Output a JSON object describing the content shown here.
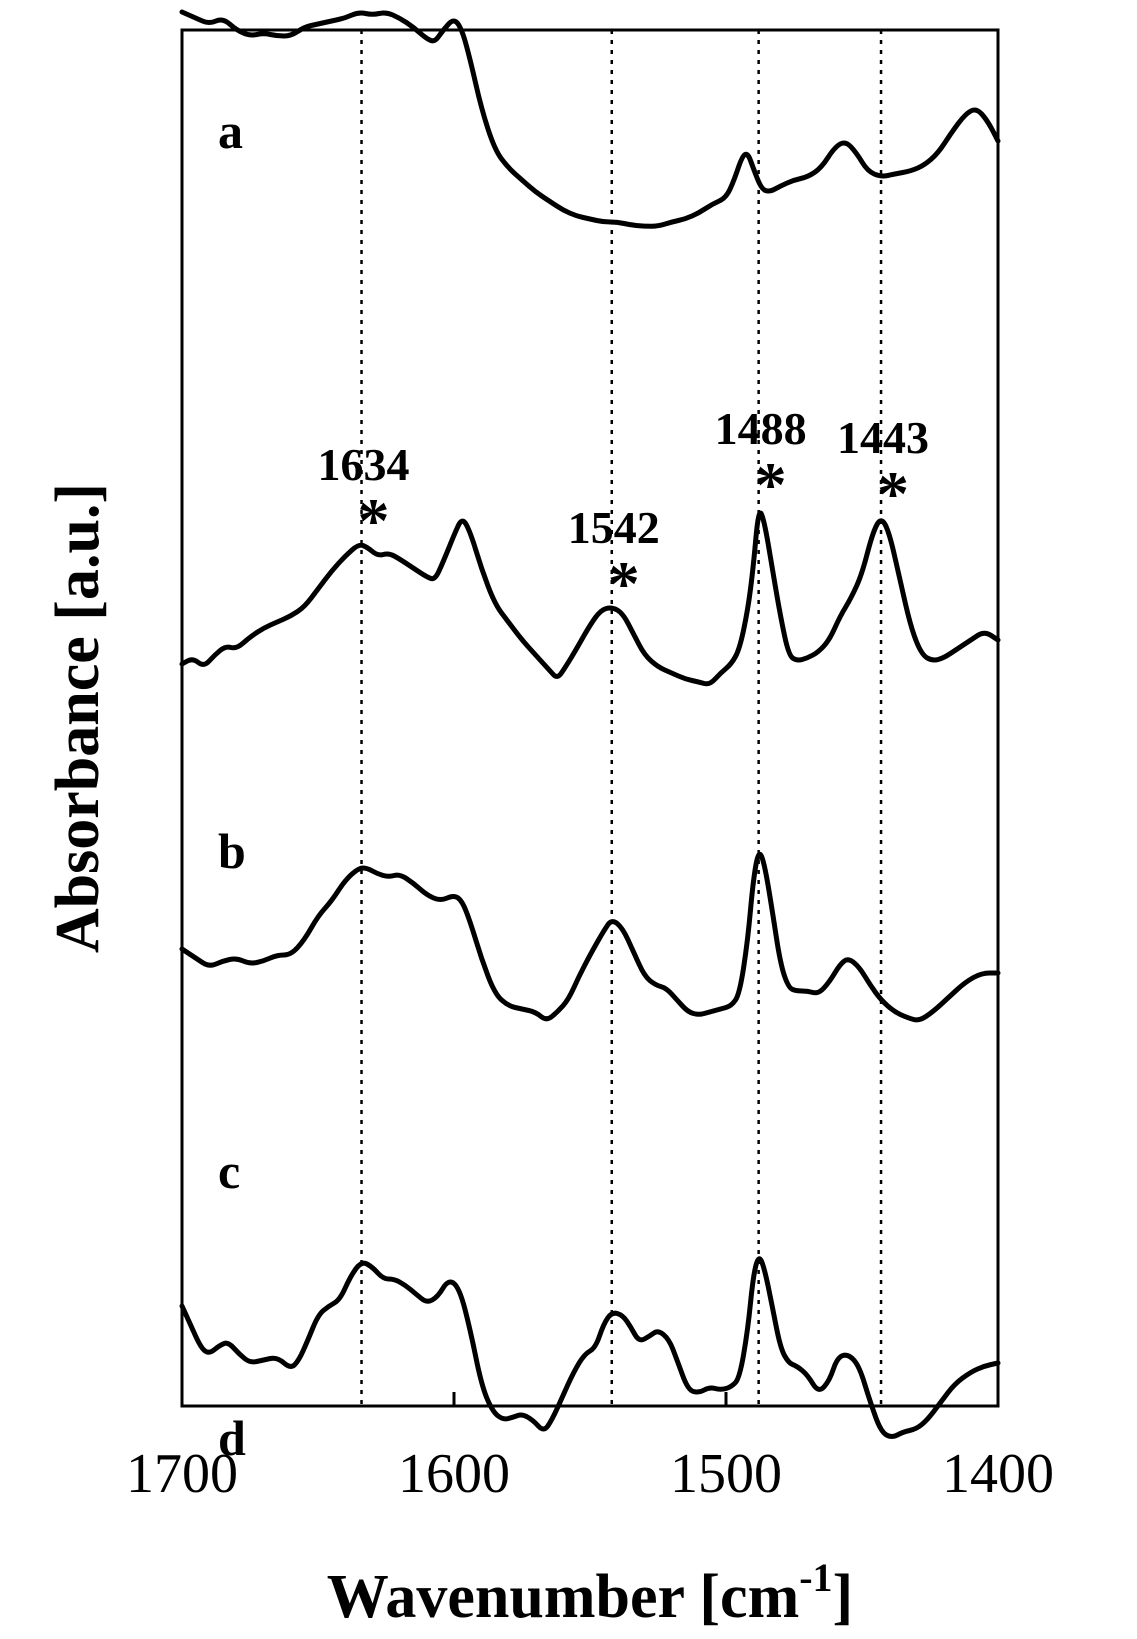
{
  "chart_data": {
    "type": "line",
    "xlabel_main": "Wavenumber [cm",
    "xlabel_sup": "-1",
    "xlabel_end": "]",
    "ylabel": "Absorbance [a.u.]",
    "xlim": [
      1700,
      1400
    ],
    "x_ticks": [
      "1700",
      "1600",
      "1500",
      "1400"
    ],
    "y_ticks_shown": false,
    "reference_lines_x": [
      1634,
      1542,
      1488,
      1443
    ],
    "peak_labels": [
      {
        "text": "1634",
        "x": 1634,
        "series": "b"
      },
      {
        "text": "1542",
        "x": 1542,
        "series": "b"
      },
      {
        "text": "1488",
        "x": 1488,
        "series": "b"
      },
      {
        "text": "1443",
        "x": 1443,
        "series": "b"
      }
    ],
    "peak_marker": "*",
    "series": [
      {
        "name": "a",
        "points": [
          [
            1700,
            0.88
          ],
          [
            1695,
            0.87
          ],
          [
            1690,
            0.86
          ],
          [
            1685,
            0.87
          ],
          [
            1680,
            0.85
          ],
          [
            1675,
            0.84
          ],
          [
            1670,
            0.845
          ],
          [
            1665,
            0.84
          ],
          [
            1660,
            0.84
          ],
          [
            1655,
            0.855
          ],
          [
            1650,
            0.86
          ],
          [
            1645,
            0.865
          ],
          [
            1640,
            0.87
          ],
          [
            1635,
            0.88
          ],
          [
            1630,
            0.875
          ],
          [
            1625,
            0.88
          ],
          [
            1620,
            0.87
          ],
          [
            1615,
            0.855
          ],
          [
            1610,
            0.835
          ],
          [
            1607,
            0.83
          ],
          [
            1604,
            0.85
          ],
          [
            1600,
            0.87
          ],
          [
            1597,
            0.85
          ],
          [
            1594,
            0.8
          ],
          [
            1590,
            0.72
          ],
          [
            1585,
            0.65
          ],
          [
            1580,
            0.62
          ],
          [
            1575,
            0.6
          ],
          [
            1570,
            0.58
          ],
          [
            1565,
            0.565
          ],
          [
            1560,
            0.55
          ],
          [
            1555,
            0.54
          ],
          [
            1550,
            0.535
          ],
          [
            1545,
            0.53
          ],
          [
            1540,
            0.53
          ],
          [
            1535,
            0.525
          ],
          [
            1530,
            0.523
          ],
          [
            1525,
            0.523
          ],
          [
            1520,
            0.53
          ],
          [
            1515,
            0.535
          ],
          [
            1510,
            0.545
          ],
          [
            1505,
            0.56
          ],
          [
            1500,
            0.57
          ],
          [
            1497,
            0.6
          ],
          [
            1494,
            0.64
          ],
          [
            1492,
            0.645
          ],
          [
            1490,
            0.62
          ],
          [
            1487,
            0.585
          ],
          [
            1484,
            0.58
          ],
          [
            1480,
            0.59
          ],
          [
            1475,
            0.6
          ],
          [
            1470,
            0.605
          ],
          [
            1465,
            0.62
          ],
          [
            1460,
            0.655
          ],
          [
            1456,
            0.665
          ],
          [
            1452,
            0.645
          ],
          [
            1448,
            0.615
          ],
          [
            1443,
            0.605
          ],
          [
            1438,
            0.61
          ],
          [
            1432,
            0.615
          ],
          [
            1427,
            0.625
          ],
          [
            1422,
            0.645
          ],
          [
            1417,
            0.68
          ],
          [
            1412,
            0.71
          ],
          [
            1408,
            0.72
          ],
          [
            1404,
            0.7
          ],
          [
            1400,
            0.665
          ]
        ]
      },
      {
        "name": "b",
        "points": [
          [
            1700,
            0.56
          ],
          [
            1696,
            0.57
          ],
          [
            1692,
            0.555
          ],
          [
            1688,
            0.575
          ],
          [
            1684,
            0.59
          ],
          [
            1680,
            0.585
          ],
          [
            1675,
            0.605
          ],
          [
            1670,
            0.62
          ],
          [
            1665,
            0.63
          ],
          [
            1660,
            0.64
          ],
          [
            1655,
            0.655
          ],
          [
            1650,
            0.685
          ],
          [
            1645,
            0.715
          ],
          [
            1640,
            0.74
          ],
          [
            1635,
            0.76
          ],
          [
            1632,
            0.755
          ],
          [
            1628,
            0.74
          ],
          [
            1624,
            0.745
          ],
          [
            1620,
            0.735
          ],
          [
            1615,
            0.72
          ],
          [
            1610,
            0.705
          ],
          [
            1607,
            0.7
          ],
          [
            1604,
            0.73
          ],
          [
            1600,
            0.775
          ],
          [
            1597,
            0.805
          ],
          [
            1594,
            0.78
          ],
          [
            1590,
            0.72
          ],
          [
            1585,
            0.66
          ],
          [
            1580,
            0.63
          ],
          [
            1575,
            0.6
          ],
          [
            1570,
            0.575
          ],
          [
            1565,
            0.55
          ],
          [
            1562,
            0.535
          ],
          [
            1559,
            0.555
          ],
          [
            1555,
            0.585
          ],
          [
            1550,
            0.625
          ],
          [
            1546,
            0.65
          ],
          [
            1542,
            0.655
          ],
          [
            1538,
            0.645
          ],
          [
            1534,
            0.61
          ],
          [
            1530,
            0.575
          ],
          [
            1525,
            0.555
          ],
          [
            1520,
            0.545
          ],
          [
            1515,
            0.535
          ],
          [
            1510,
            0.53
          ],
          [
            1506,
            0.525
          ],
          [
            1502,
            0.545
          ],
          [
            1498,
            0.56
          ],
          [
            1495,
            0.585
          ],
          [
            1492,
            0.65
          ],
          [
            1490,
            0.72
          ],
          [
            1488,
            0.82
          ],
          [
            1486,
            0.8
          ],
          [
            1483,
            0.72
          ],
          [
            1480,
            0.64
          ],
          [
            1477,
            0.575
          ],
          [
            1474,
            0.565
          ],
          [
            1470,
            0.57
          ],
          [
            1466,
            0.58
          ],
          [
            1462,
            0.6
          ],
          [
            1458,
            0.64
          ],
          [
            1454,
            0.67
          ],
          [
            1450,
            0.71
          ],
          [
            1446,
            0.78
          ],
          [
            1443,
            0.805
          ],
          [
            1440,
            0.78
          ],
          [
            1436,
            0.7
          ],
          [
            1432,
            0.62
          ],
          [
            1428,
            0.575
          ],
          [
            1424,
            0.565
          ],
          [
            1420,
            0.57
          ],
          [
            1415,
            0.585
          ],
          [
            1410,
            0.6
          ],
          [
            1405,
            0.615
          ],
          [
            1400,
            0.6
          ]
        ]
      },
      {
        "name": "c",
        "points": [
          [
            1700,
            0.585
          ],
          [
            1695,
            0.57
          ],
          [
            1690,
            0.555
          ],
          [
            1685,
            0.565
          ],
          [
            1680,
            0.57
          ],
          [
            1675,
            0.56
          ],
          [
            1670,
            0.565
          ],
          [
            1665,
            0.575
          ],
          [
            1660,
            0.575
          ],
          [
            1655,
            0.6
          ],
          [
            1650,
            0.64
          ],
          [
            1645,
            0.665
          ],
          [
            1640,
            0.7
          ],
          [
            1635,
            0.72
          ],
          [
            1632,
            0.72
          ],
          [
            1628,
            0.71
          ],
          [
            1624,
            0.705
          ],
          [
            1620,
            0.71
          ],
          [
            1615,
            0.695
          ],
          [
            1610,
            0.675
          ],
          [
            1605,
            0.665
          ],
          [
            1600,
            0.675
          ],
          [
            1597,
            0.665
          ],
          [
            1594,
            0.63
          ],
          [
            1590,
            0.57
          ],
          [
            1585,
            0.51
          ],
          [
            1580,
            0.49
          ],
          [
            1575,
            0.485
          ],
          [
            1570,
            0.48
          ],
          [
            1566,
            0.465
          ],
          [
            1562,
            0.48
          ],
          [
            1558,
            0.5
          ],
          [
            1554,
            0.54
          ],
          [
            1550,
            0.575
          ],
          [
            1545,
            0.615
          ],
          [
            1542,
            0.635
          ],
          [
            1538,
            0.62
          ],
          [
            1534,
            0.58
          ],
          [
            1530,
            0.54
          ],
          [
            1526,
            0.525
          ],
          [
            1522,
            0.52
          ],
          [
            1518,
            0.5
          ],
          [
            1514,
            0.48
          ],
          [
            1510,
            0.475
          ],
          [
            1506,
            0.48
          ],
          [
            1502,
            0.485
          ],
          [
            1498,
            0.49
          ],
          [
            1495,
            0.51
          ],
          [
            1492,
            0.6
          ],
          [
            1490,
            0.7
          ],
          [
            1488,
            0.75
          ],
          [
            1486,
            0.73
          ],
          [
            1483,
            0.65
          ],
          [
            1480,
            0.56
          ],
          [
            1477,
            0.52
          ],
          [
            1474,
            0.515
          ],
          [
            1470,
            0.515
          ],
          [
            1466,
            0.51
          ],
          [
            1462,
            0.53
          ],
          [
            1458,
            0.56
          ],
          [
            1455,
            0.57
          ],
          [
            1451,
            0.555
          ],
          [
            1447,
            0.525
          ],
          [
            1443,
            0.5
          ],
          [
            1438,
            0.48
          ],
          [
            1433,
            0.47
          ],
          [
            1429,
            0.465
          ],
          [
            1424,
            0.48
          ],
          [
            1418,
            0.505
          ],
          [
            1412,
            0.53
          ],
          [
            1406,
            0.545
          ],
          [
            1400,
            0.545
          ]
        ]
      },
      {
        "name": "d",
        "points": [
          [
            1700,
            0.49
          ],
          [
            1697,
            0.46
          ],
          [
            1693,
            0.42
          ],
          [
            1690,
            0.41
          ],
          [
            1686,
            0.425
          ],
          [
            1683,
            0.43
          ],
          [
            1679,
            0.41
          ],
          [
            1675,
            0.395
          ],
          [
            1670,
            0.4
          ],
          [
            1665,
            0.405
          ],
          [
            1660,
            0.385
          ],
          [
            1657,
            0.4
          ],
          [
            1654,
            0.43
          ],
          [
            1650,
            0.475
          ],
          [
            1646,
            0.49
          ],
          [
            1642,
            0.5
          ],
          [
            1638,
            0.54
          ],
          [
            1634,
            0.565
          ],
          [
            1630,
            0.555
          ],
          [
            1626,
            0.535
          ],
          [
            1622,
            0.535
          ],
          [
            1618,
            0.525
          ],
          [
            1614,
            0.51
          ],
          [
            1610,
            0.495
          ],
          [
            1606,
            0.505
          ],
          [
            1602,
            0.535
          ],
          [
            1598,
            0.52
          ],
          [
            1594,
            0.45
          ],
          [
            1590,
            0.36
          ],
          [
            1586,
            0.315
          ],
          [
            1582,
            0.3
          ],
          [
            1578,
            0.305
          ],
          [
            1575,
            0.31
          ],
          [
            1571,
            0.3
          ],
          [
            1567,
            0.28
          ],
          [
            1564,
            0.3
          ],
          [
            1560,
            0.34
          ],
          [
            1556,
            0.38
          ],
          [
            1552,
            0.41
          ],
          [
            1548,
            0.42
          ],
          [
            1545,
            0.46
          ],
          [
            1542,
            0.48
          ],
          [
            1538,
            0.475
          ],
          [
            1535,
            0.455
          ],
          [
            1532,
            0.43
          ],
          [
            1528,
            0.44
          ],
          [
            1525,
            0.45
          ],
          [
            1521,
            0.435
          ],
          [
            1518,
            0.4
          ],
          [
            1514,
            0.35
          ],
          [
            1510,
            0.345
          ],
          [
            1506,
            0.355
          ],
          [
            1502,
            0.35
          ],
          [
            1498,
            0.355
          ],
          [
            1495,
            0.37
          ],
          [
            1492,
            0.45
          ],
          [
            1490,
            0.54
          ],
          [
            1488,
            0.575
          ],
          [
            1486,
            0.555
          ],
          [
            1483,
            0.49
          ],
          [
            1480,
            0.42
          ],
          [
            1477,
            0.395
          ],
          [
            1474,
            0.39
          ],
          [
            1470,
            0.375
          ],
          [
            1466,
            0.345
          ],
          [
            1462,
            0.365
          ],
          [
            1459,
            0.405
          ],
          [
            1455,
            0.41
          ],
          [
            1451,
            0.39
          ],
          [
            1447,
            0.33
          ],
          [
            1443,
            0.28
          ],
          [
            1439,
            0.27
          ],
          [
            1435,
            0.28
          ],
          [
            1430,
            0.285
          ],
          [
            1426,
            0.3
          ],
          [
            1421,
            0.33
          ],
          [
            1416,
            0.36
          ],
          [
            1410,
            0.38
          ],
          [
            1405,
            0.39
          ],
          [
            1400,
            0.395
          ]
        ]
      }
    ]
  }
}
